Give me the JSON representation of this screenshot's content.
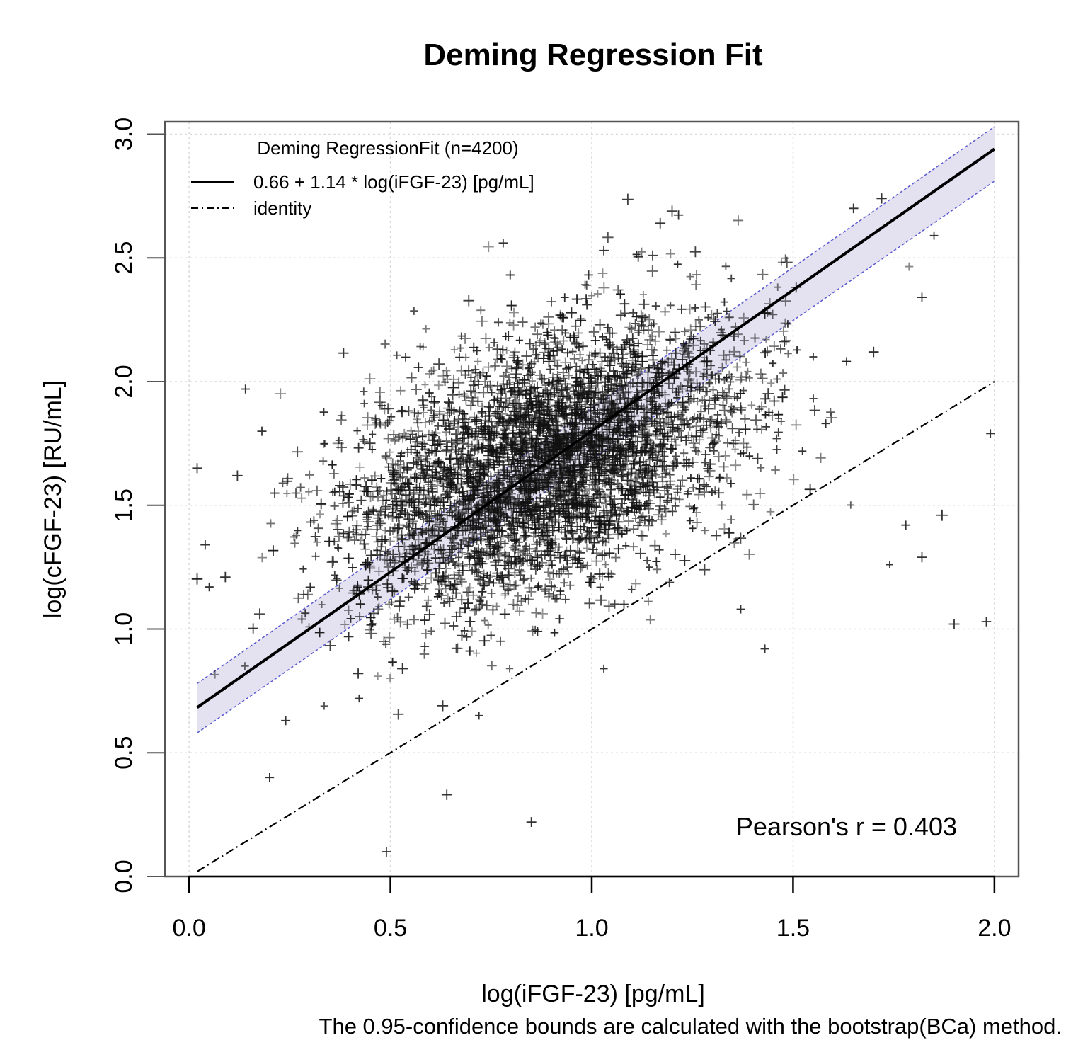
{
  "chart_data": {
    "type": "scatter",
    "title": "Deming Regression Fit",
    "xlabel": "log(iFGF-23) [pg/mL]",
    "ylabel": "log(cFGF-23) [RU/mL]",
    "xlim": [
      -0.06,
      2.06
    ],
    "ylim": [
      0.0,
      3.05
    ],
    "x_ticks": [
      0.0,
      0.5,
      1.0,
      1.5,
      2.0
    ],
    "x_tick_labels": [
      "0.0",
      "0.5",
      "1.0",
      "1.5",
      "2.0"
    ],
    "y_ticks": [
      0.0,
      0.5,
      1.0,
      1.5,
      2.0,
      2.5,
      3.0
    ],
    "y_tick_labels": [
      "0.0",
      "0.5",
      "1.0",
      "1.5",
      "2.0",
      "2.5",
      "3.0"
    ],
    "grid": true,
    "legend": {
      "placement": "top-left",
      "title": "Deming RegressionFit (n=4200)",
      "entries": [
        {
          "label": "0.66 + 1.14 * log(iFGF-23) [pg/mL]",
          "style": "solid"
        },
        {
          "label": "identity",
          "style": "dashdot"
        }
      ]
    },
    "fit_line": {
      "intercept": 0.66,
      "slope": 1.14,
      "x_range": [
        0.02,
        2.0
      ]
    },
    "identity_line": {
      "intercept": 0.0,
      "slope": 1.0,
      "x_range": [
        0.02,
        2.0
      ]
    },
    "confidence_band": {
      "x": [
        0.02,
        2.0
      ],
      "lower": [
        0.58,
        2.81
      ],
      "upper": [
        0.78,
        3.03
      ]
    },
    "points_summary": {
      "n": 4200,
      "x_center": 0.88,
      "y_center": 1.67,
      "x_sd": 0.24,
      "y_sd": 0.28,
      "marker": "+"
    },
    "outliers": [
      {
        "x": 0.02,
        "y": 1.65
      },
      {
        "x": 0.04,
        "y": 1.34
      },
      {
        "x": 0.05,
        "y": 1.17
      },
      {
        "x": 0.09,
        "y": 1.21
      },
      {
        "x": 0.14,
        "y": 1.97
      },
      {
        "x": 0.12,
        "y": 1.62
      },
      {
        "x": 0.2,
        "y": 0.4
      },
      {
        "x": 0.24,
        "y": 0.63
      },
      {
        "x": 0.64,
        "y": 0.33
      },
      {
        "x": 0.85,
        "y": 0.22
      },
      {
        "x": 0.49,
        "y": 0.1
      },
      {
        "x": 1.03,
        "y": 0.84
      },
      {
        "x": 0.78,
        "y": 2.56
      },
      {
        "x": 1.03,
        "y": 2.53
      },
      {
        "x": 1.17,
        "y": 2.64
      },
      {
        "x": 1.43,
        "y": 0.92
      },
      {
        "x": 1.37,
        "y": 1.08
      },
      {
        "x": 1.9,
        "y": 1.02
      },
      {
        "x": 1.98,
        "y": 1.03
      },
      {
        "x": 1.99,
        "y": 1.79
      },
      {
        "x": 1.82,
        "y": 1.29
      },
      {
        "x": 1.87,
        "y": 1.46
      },
      {
        "x": 1.78,
        "y": 1.42
      },
      {
        "x": 1.82,
        "y": 2.34
      },
      {
        "x": 1.85,
        "y": 2.59
      },
      {
        "x": 1.65,
        "y": 2.7
      },
      {
        "x": 1.72,
        "y": 2.74
      },
      {
        "x": 1.55,
        "y": 2.1
      },
      {
        "x": 1.7,
        "y": 2.12
      },
      {
        "x": 1.74,
        "y": 1.26
      },
      {
        "x": 1.08,
        "y": 1.1
      },
      {
        "x": 0.63,
        "y": 0.69
      },
      {
        "x": 0.72,
        "y": 0.65
      },
      {
        "x": 0.53,
        "y": 0.84
      },
      {
        "x": 0.42,
        "y": 0.82
      },
      {
        "x": 0.28,
        "y": 1.04
      }
    ],
    "annotation": "Pearson's r = 0.403",
    "footnote": "The 0.95-confidence bounds are calculated with the bootstrap(BCa) method."
  }
}
